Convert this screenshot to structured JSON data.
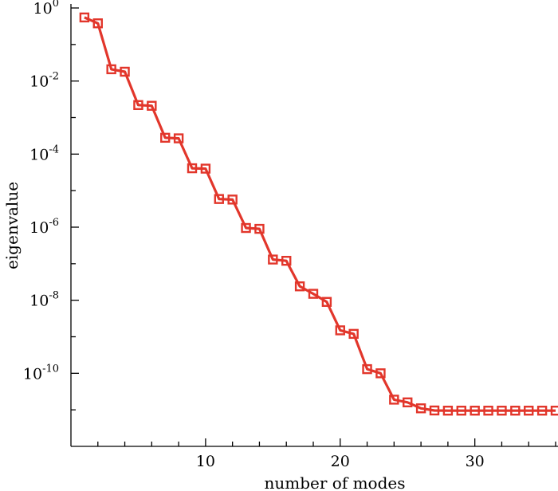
{
  "chart_data": {
    "type": "line",
    "title": "",
    "xlabel": "number of modes",
    "ylabel": "eigenvalue",
    "yscale": "log",
    "xlim": [
      0,
      36
    ],
    "ylim": [
      1e-12,
      1
    ],
    "grid": false,
    "legend": "none",
    "x_ticks": [
      10,
      20,
      30
    ],
    "x_tick_labels": [
      "10",
      "20",
      "30"
    ],
    "y_ticks": [
      1,
      0.01,
      0.0001,
      1e-06,
      1e-08,
      1e-10
    ],
    "y_tick_labels": [
      {
        "base": "10",
        "exp": "0"
      },
      {
        "base": "10",
        "exp": "-2"
      },
      {
        "base": "10",
        "exp": "-4"
      },
      {
        "base": "10",
        "exp": "-6"
      },
      {
        "base": "10",
        "exp": "-8"
      },
      {
        "base": "10",
        "exp": "-10"
      }
    ],
    "color": "#e2362b",
    "marker": "square",
    "series": [
      {
        "x": [
          1,
          2,
          3,
          4,
          5,
          6,
          7,
          8,
          9,
          10,
          11,
          12,
          13,
          14,
          15,
          16,
          17,
          18,
          19,
          20,
          21,
          22,
          23,
          24,
          25,
          26,
          27,
          28,
          29,
          30,
          31,
          32,
          33,
          34,
          35,
          36
        ],
        "values": [
          0.55,
          0.38,
          0.021,
          0.018,
          0.0022,
          0.0021,
          0.00028,
          0.00027,
          4.1e-05,
          4e-05,
          5.9e-06,
          5.7e-06,
          9.5e-07,
          9e-07,
          1.3e-07,
          1.2e-07,
          2.4e-08,
          1.5e-08,
          9e-09,
          1.5e-09,
          1.2e-09,
          1.3e-10,
          1e-10,
          1.9e-11,
          1.6e-11,
          1.1e-11,
          9.6e-12,
          9.5e-12,
          9.5e-12,
          9.5e-12,
          9.5e-12,
          9.5e-12,
          9.5e-12,
          9.5e-12,
          9.5e-12,
          9.5e-12
        ]
      }
    ]
  }
}
